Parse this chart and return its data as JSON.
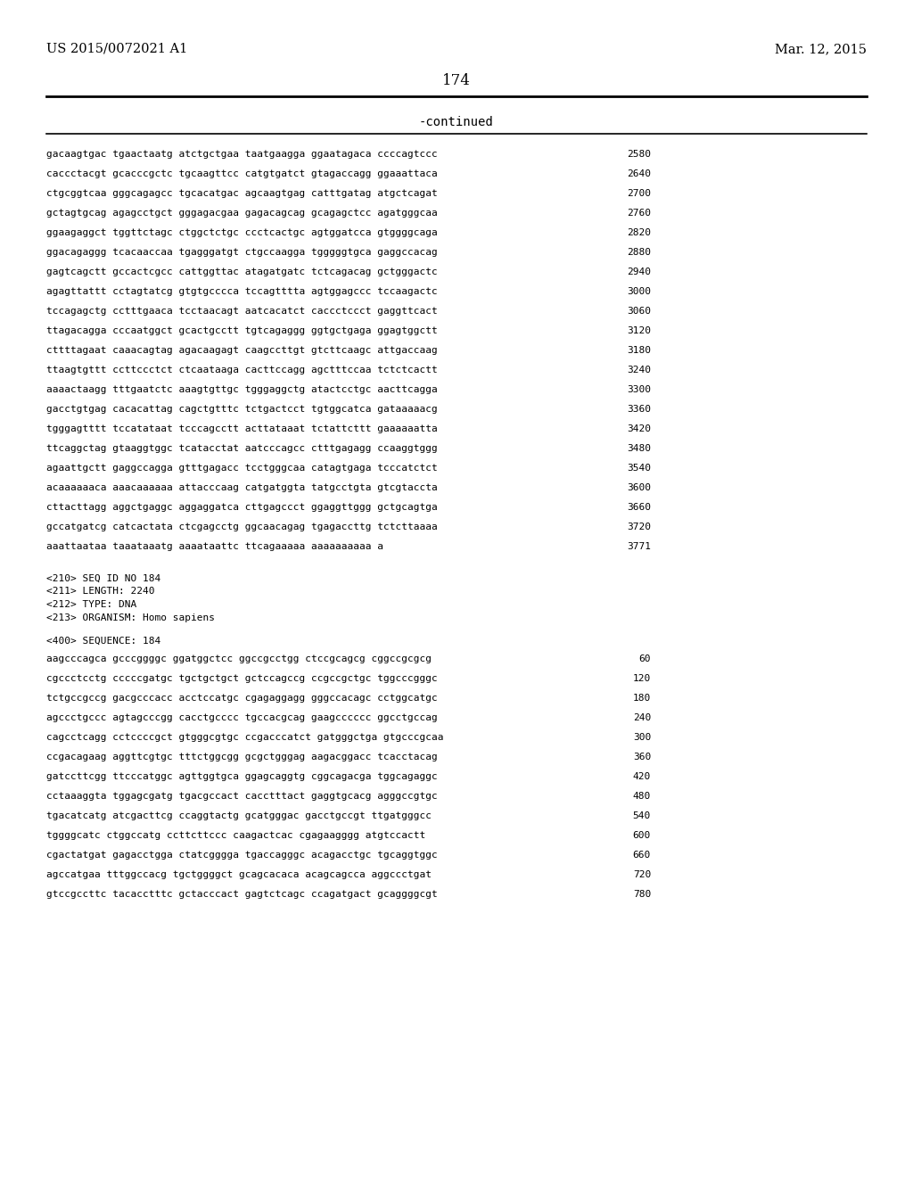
{
  "header_left": "US 2015/0072021 A1",
  "header_right": "Mar. 12, 2015",
  "page_number": "174",
  "continued_text": "-continued",
  "background_color": "#ffffff",
  "text_color": "#000000",
  "line_color": "#000000",
  "sequence_lines_part1": [
    [
      "gacaagtgac tgaactaatg atctgctgaa taatgaagga ggaatagaca ccccagtccc",
      "2580"
    ],
    [
      "caccctacgt gcacccgctc tgcaagttcc catgtgatct gtagaccagg ggaaattaca",
      "2640"
    ],
    [
      "ctgcggtcaa gggcagagcc tgcacatgac agcaagtgag catttgatag atgctcagat",
      "2700"
    ],
    [
      "gctagtgcag agagcctgct gggagacgaa gagacagcag gcagagctcc agatgggcaa",
      "2760"
    ],
    [
      "ggaagaggct tggttctagc ctggctctgc ccctcactgc agtggatcca gtggggcaga",
      "2820"
    ],
    [
      "ggacagaggg tcacaaccaa tgagggatgt ctgccaagga tgggggtgca gaggccacag",
      "2880"
    ],
    [
      "gagtcagctt gccactcgcc cattggttac atagatgatc tctcagacag gctgggactc",
      "2940"
    ],
    [
      "agagttattt cctagtatcg gtgtgcccca tccagtttta agtggagccc tccaagactc",
      "3000"
    ],
    [
      "tccagagctg cctttgaaca tcctaacagt aatcacatct caccctccct gaggttcact",
      "3060"
    ],
    [
      "ttagacagga cccaatggct gcactgcctt tgtcagaggg ggtgctgaga ggagtggctt",
      "3120"
    ],
    [
      "cttttagaat caaacagtag agacaagagt caagccttgt gtcttcaagc attgaccaag",
      "3180"
    ],
    [
      "ttaagtgttt ccttccctct ctcaataaga cacttccagg agctttccaa tctctcactt",
      "3240"
    ],
    [
      "aaaactaagg tttgaatctc aaagtgttgc tgggaggctg atactcctgc aacttcagga",
      "3300"
    ],
    [
      "gacctgtgag cacacattag cagctgtttc tctgactcct tgtggcatca gataaaaacg",
      "3360"
    ],
    [
      "tgggagtttt tccatataat tcccagcctt acttataaat tctattcttt gaaaaaatta",
      "3420"
    ],
    [
      "ttcaggctag gtaaggtggc tcatacctat aatcccagcc ctttgagagg ccaaggtggg",
      "3480"
    ],
    [
      "agaattgctt gaggccagga gtttgagacc tcctgggcaa catagtgaga tcccatctct",
      "3540"
    ],
    [
      "acaaaaaaca aaacaaaaaa attacccaag catgatggta tatgcctgta gtcgtaccta",
      "3600"
    ],
    [
      "cttacttagg aggctgaggc aggaggatca cttgagccct ggaggttggg gctgcagtga",
      "3660"
    ],
    [
      "gccatgatcg catcactata ctcgagcctg ggcaacagag tgagaccttg tctcttaaaa",
      "3720"
    ],
    [
      "aaattaataa taaataaatg aaaataattc ttcagaaaaa aaaaaaaaaa a",
      "3771"
    ]
  ],
  "metadata_lines": [
    "<210> SEQ ID NO 184",
    "<211> LENGTH: 2240",
    "<212> TYPE: DNA",
    "<213> ORGANISM: Homo sapiens"
  ],
  "sequence_label": "<400> SEQUENCE: 184",
  "sequence_lines_part2": [
    [
      "aagcccagca gcccggggc ggatggctcc ggccgcctgg ctccgcagcg cggccgcgcg",
      "60"
    ],
    [
      "cgccctcctg cccccgatgc tgctgctgct gctccagccg ccgccgctgc tggcccgggc",
      "120"
    ],
    [
      "tctgccgccg gacgcccacc acctccatgc cgagaggagg gggccacagc cctggcatgc",
      "180"
    ],
    [
      "agccctgccc agtagcccgg cacctgcccc tgccacgcag gaagcccccc ggcctgccag",
      "240"
    ],
    [
      "cagcctcagg cctccccgct gtgggcgtgc ccgacccatct gatgggctga gtgcccgcaa",
      "300"
    ],
    [
      "ccgacagaag aggttcgtgc tttctggcgg gcgctgggag aagacggacc tcacctacag",
      "360"
    ],
    [
      "gatccttcgg ttcccatggc agttggtgca ggagcaggtg cggcagacga tggcagaggc",
      "420"
    ],
    [
      "cctaaaggta tggagcgatg tgacgccact cacctttact gaggtgcacg agggccgtgc",
      "480"
    ],
    [
      "tgacatcatg atcgacttcg ccaggtactg gcatgggac gacctgccgt ttgatgggcc",
      "540"
    ],
    [
      "tggggcatc ctggccatg ccttcttccc caagactcac cgagaagggg atgtccactt",
      "600"
    ],
    [
      "cgactatgat gagacctgga ctatcgggga tgaccagggc acagacctgc tgcaggtggc",
      "660"
    ],
    [
      "agccatgaa tttggccacg tgctggggct gcagcacaca acagcagcca aggccctgat",
      "720"
    ],
    [
      "gtccgccttc tacacctttc gctacccact gagtctcagc ccagatgact gcaggggcgt",
      "780"
    ]
  ]
}
